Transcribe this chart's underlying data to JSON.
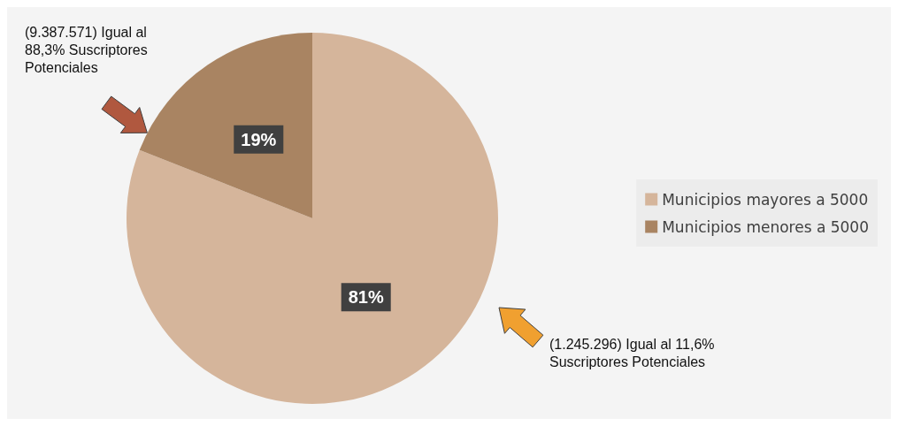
{
  "chart_data": {
    "type": "pie",
    "categories": [
      "Municipios mayores a 5000",
      "Municipios menores a 5000"
    ],
    "values": [
      81,
      19
    ],
    "colors": [
      "#d5b59b",
      "#a98462"
    ],
    "value_labels": [
      "81%",
      "19%"
    ],
    "legend": "right",
    "annotations": [
      "(9.387.571) Igual al\n88,3% Suscriptores\nPotenciales",
      "(1.245.296) Igual al 11,6%\nSuscriptores Potenciales"
    ]
  }
}
